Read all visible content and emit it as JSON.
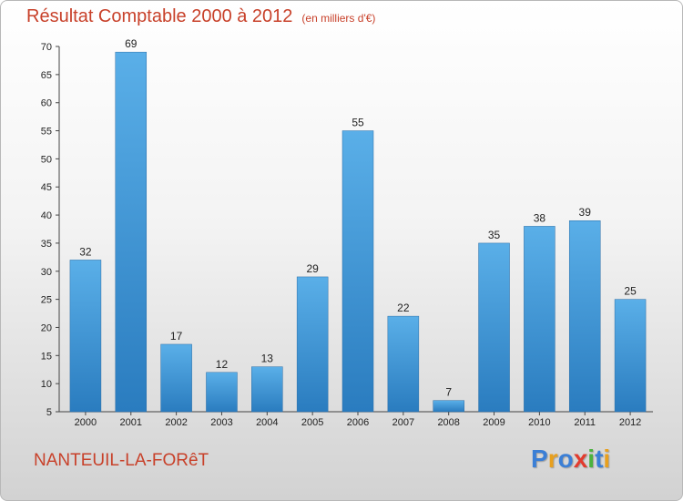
{
  "header": {
    "title": "Résultat Comptable 2000 à 2012",
    "subtitle": "(en milliers d'€)"
  },
  "footer": {
    "town": "NANTEUIL-LA-FORêT",
    "logo_letters": [
      {
        "char": "P",
        "color": "#3b7fd6"
      },
      {
        "char": "r",
        "color": "#e8a01e"
      },
      {
        "char": "o",
        "color": "#3b7fd6"
      },
      {
        "char": "x",
        "color": "#e23b2e"
      },
      {
        "char": "i",
        "color": "#4bb23d"
      },
      {
        "char": "t",
        "color": "#3b7fd6"
      },
      {
        "char": "i",
        "color": "#e8a01e"
      }
    ]
  },
  "colors": {
    "bar_top": "#5aafe8",
    "bar_bottom": "#2a7cbf",
    "title": "#c8412a"
  },
  "chart_data": {
    "type": "bar",
    "title": "Résultat Comptable 2000 à 2012",
    "subtitle": "(en milliers d'€)",
    "categories": [
      "2000",
      "2001",
      "2002",
      "2003",
      "2004",
      "2005",
      "2006",
      "2007",
      "2008",
      "2009",
      "2010",
      "2011",
      "2012"
    ],
    "values": [
      32,
      69,
      17,
      12,
      13,
      29,
      55,
      22,
      7,
      35,
      38,
      39,
      25
    ],
    "ylim": [
      5,
      70
    ],
    "yticks": [
      5,
      10,
      15,
      20,
      25,
      30,
      35,
      40,
      45,
      50,
      55,
      60,
      65,
      70
    ],
    "xlabel": "",
    "ylabel": "",
    "grid": false,
    "legend": "none"
  }
}
